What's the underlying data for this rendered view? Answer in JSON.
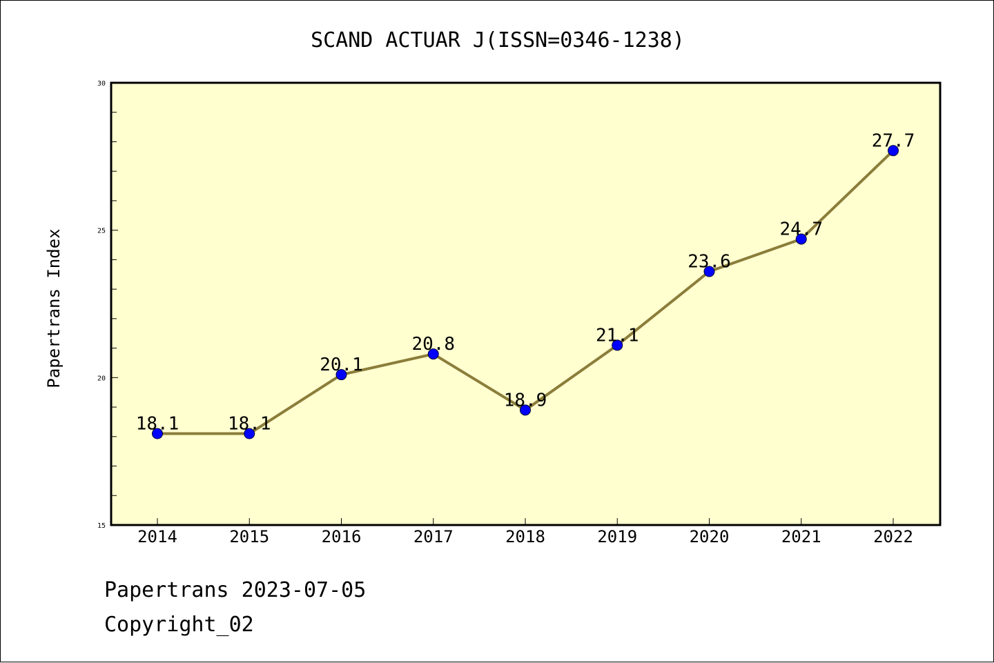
{
  "chart_data": {
    "type": "line",
    "title": "SCAND ACTUAR J(ISSN=0346-1238)",
    "xlabel": "",
    "ylabel": "Papertrans Index",
    "categories": [
      "2014",
      "2015",
      "2016",
      "2017",
      "2018",
      "2019",
      "2020",
      "2021",
      "2022"
    ],
    "series": [
      {
        "values": [
          18.1,
          18.1,
          20.1,
          20.8,
          18.9,
          21.1,
          23.6,
          24.7,
          27.7
        ]
      }
    ],
    "data_labels": [
      "18.1",
      "18.1",
      "20.1",
      "20.8",
      "18.9",
      "21.1",
      "23.6",
      "24.7",
      "27.7"
    ],
    "ylim": [
      15,
      30
    ],
    "yticks": [
      "15",
      "20",
      "25",
      "30"
    ],
    "grid": false,
    "colors": {
      "plot_background": "#ffffd0",
      "line": "#8b7d3a",
      "marker": "#0000ff"
    }
  },
  "footer": {
    "line1": "Papertrans 2023-07-05",
    "line2": "Copyright_02"
  }
}
